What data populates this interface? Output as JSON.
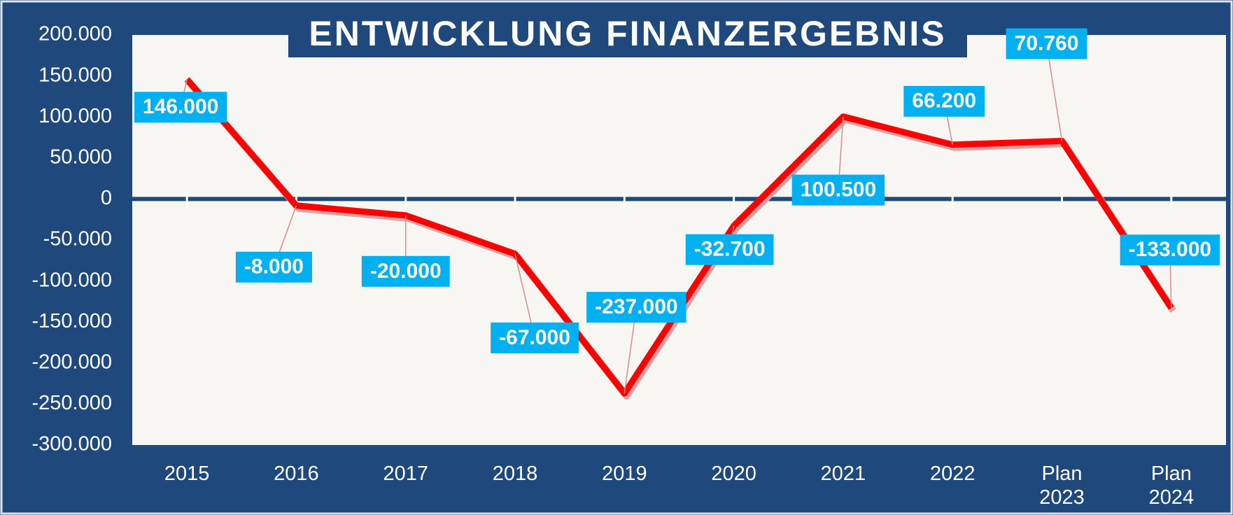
{
  "chart_data": {
    "type": "line",
    "title": "ENTWICKLUNG FINANZERGEBNIS",
    "categories": [
      "2015",
      "2016",
      "2017",
      "2018",
      "2019",
      "2020",
      "2021",
      "2022",
      "Plan 2023",
      "Plan 2024"
    ],
    "series": [
      {
        "name": "Finanzergebnis",
        "color": "#ff0000",
        "values": [
          146000,
          -8000,
          -20000,
          -67000,
          -237000,
          -32700,
          100500,
          66200,
          70760,
          -133000
        ],
        "value_labels": [
          "146.000",
          "-8.000",
          "-20.000",
          "-67.000",
          "-237.000",
          "-32.700",
          "100.500",
          "66.200",
          "70.760",
          "-133.000"
        ]
      }
    ],
    "ylim": [
      -300000,
      200000
    ],
    "yticks": [
      {
        "value": -300000,
        "label": "-300.000"
      },
      {
        "value": -250000,
        "label": "-250.000"
      },
      {
        "value": -200000,
        "label": "-200.000"
      },
      {
        "value": -150000,
        "label": "-150.000"
      },
      {
        "value": -100000,
        "label": "-100.000"
      },
      {
        "value": -50000,
        "label": "-50.000"
      },
      {
        "value": 0,
        "label": "0"
      },
      {
        "value": 50000,
        "label": "50.000"
      },
      {
        "value": 100000,
        "label": "100.000"
      },
      {
        "value": 150000,
        "label": "150.000"
      },
      {
        "value": 200000,
        "label": "200.000"
      }
    ],
    "label_color": "#00b0f0"
  }
}
